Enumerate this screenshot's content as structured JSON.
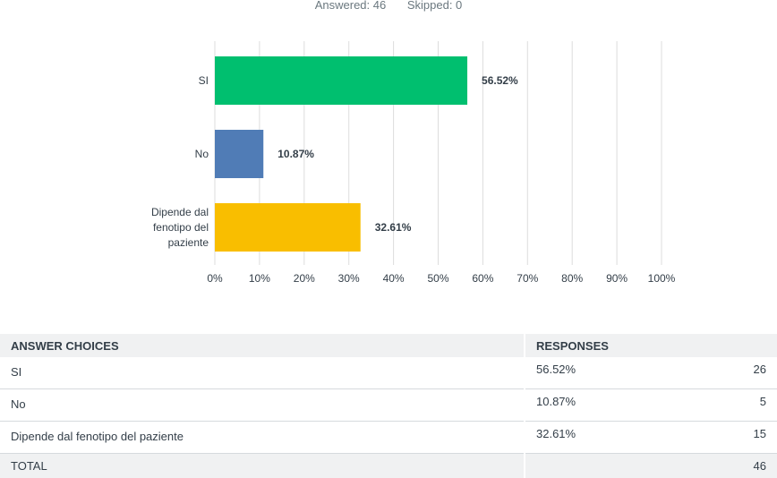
{
  "summary": {
    "answered": "Answered: 46",
    "skipped": "Skipped: 0"
  },
  "chart_data": {
    "type": "bar",
    "orientation": "horizontal",
    "categories": [
      "SI",
      "No",
      "Dipende dal fenotipo del paziente"
    ],
    "category_lines": [
      [
        "SI"
      ],
      [
        "No"
      ],
      [
        "Dipende dal",
        "fenotipo del",
        "paziente"
      ]
    ],
    "values": [
      56.52,
      10.87,
      32.61
    ],
    "value_labels": [
      "56.52%",
      "10.87%",
      "32.61%"
    ],
    "colors": [
      "#00bf6f",
      "#507cb6",
      "#f9be00"
    ],
    "xlim": [
      0,
      100
    ],
    "xticks": [
      "0%",
      "10%",
      "20%",
      "30%",
      "40%",
      "50%",
      "60%",
      "70%",
      "80%",
      "90%",
      "100%"
    ],
    "grid": true
  },
  "table": {
    "headers": {
      "choice": "ANSWER CHOICES",
      "responses": "RESPONSES"
    },
    "rows": [
      {
        "choice": "SI",
        "percent": "56.52%",
        "count": "26"
      },
      {
        "choice": "No",
        "percent": "10.87%",
        "count": "5"
      },
      {
        "choice": "Dipende dal fenotipo del paziente",
        "percent": "32.61%",
        "count": "15"
      }
    ],
    "total_label": "TOTAL",
    "total_count": "46"
  }
}
